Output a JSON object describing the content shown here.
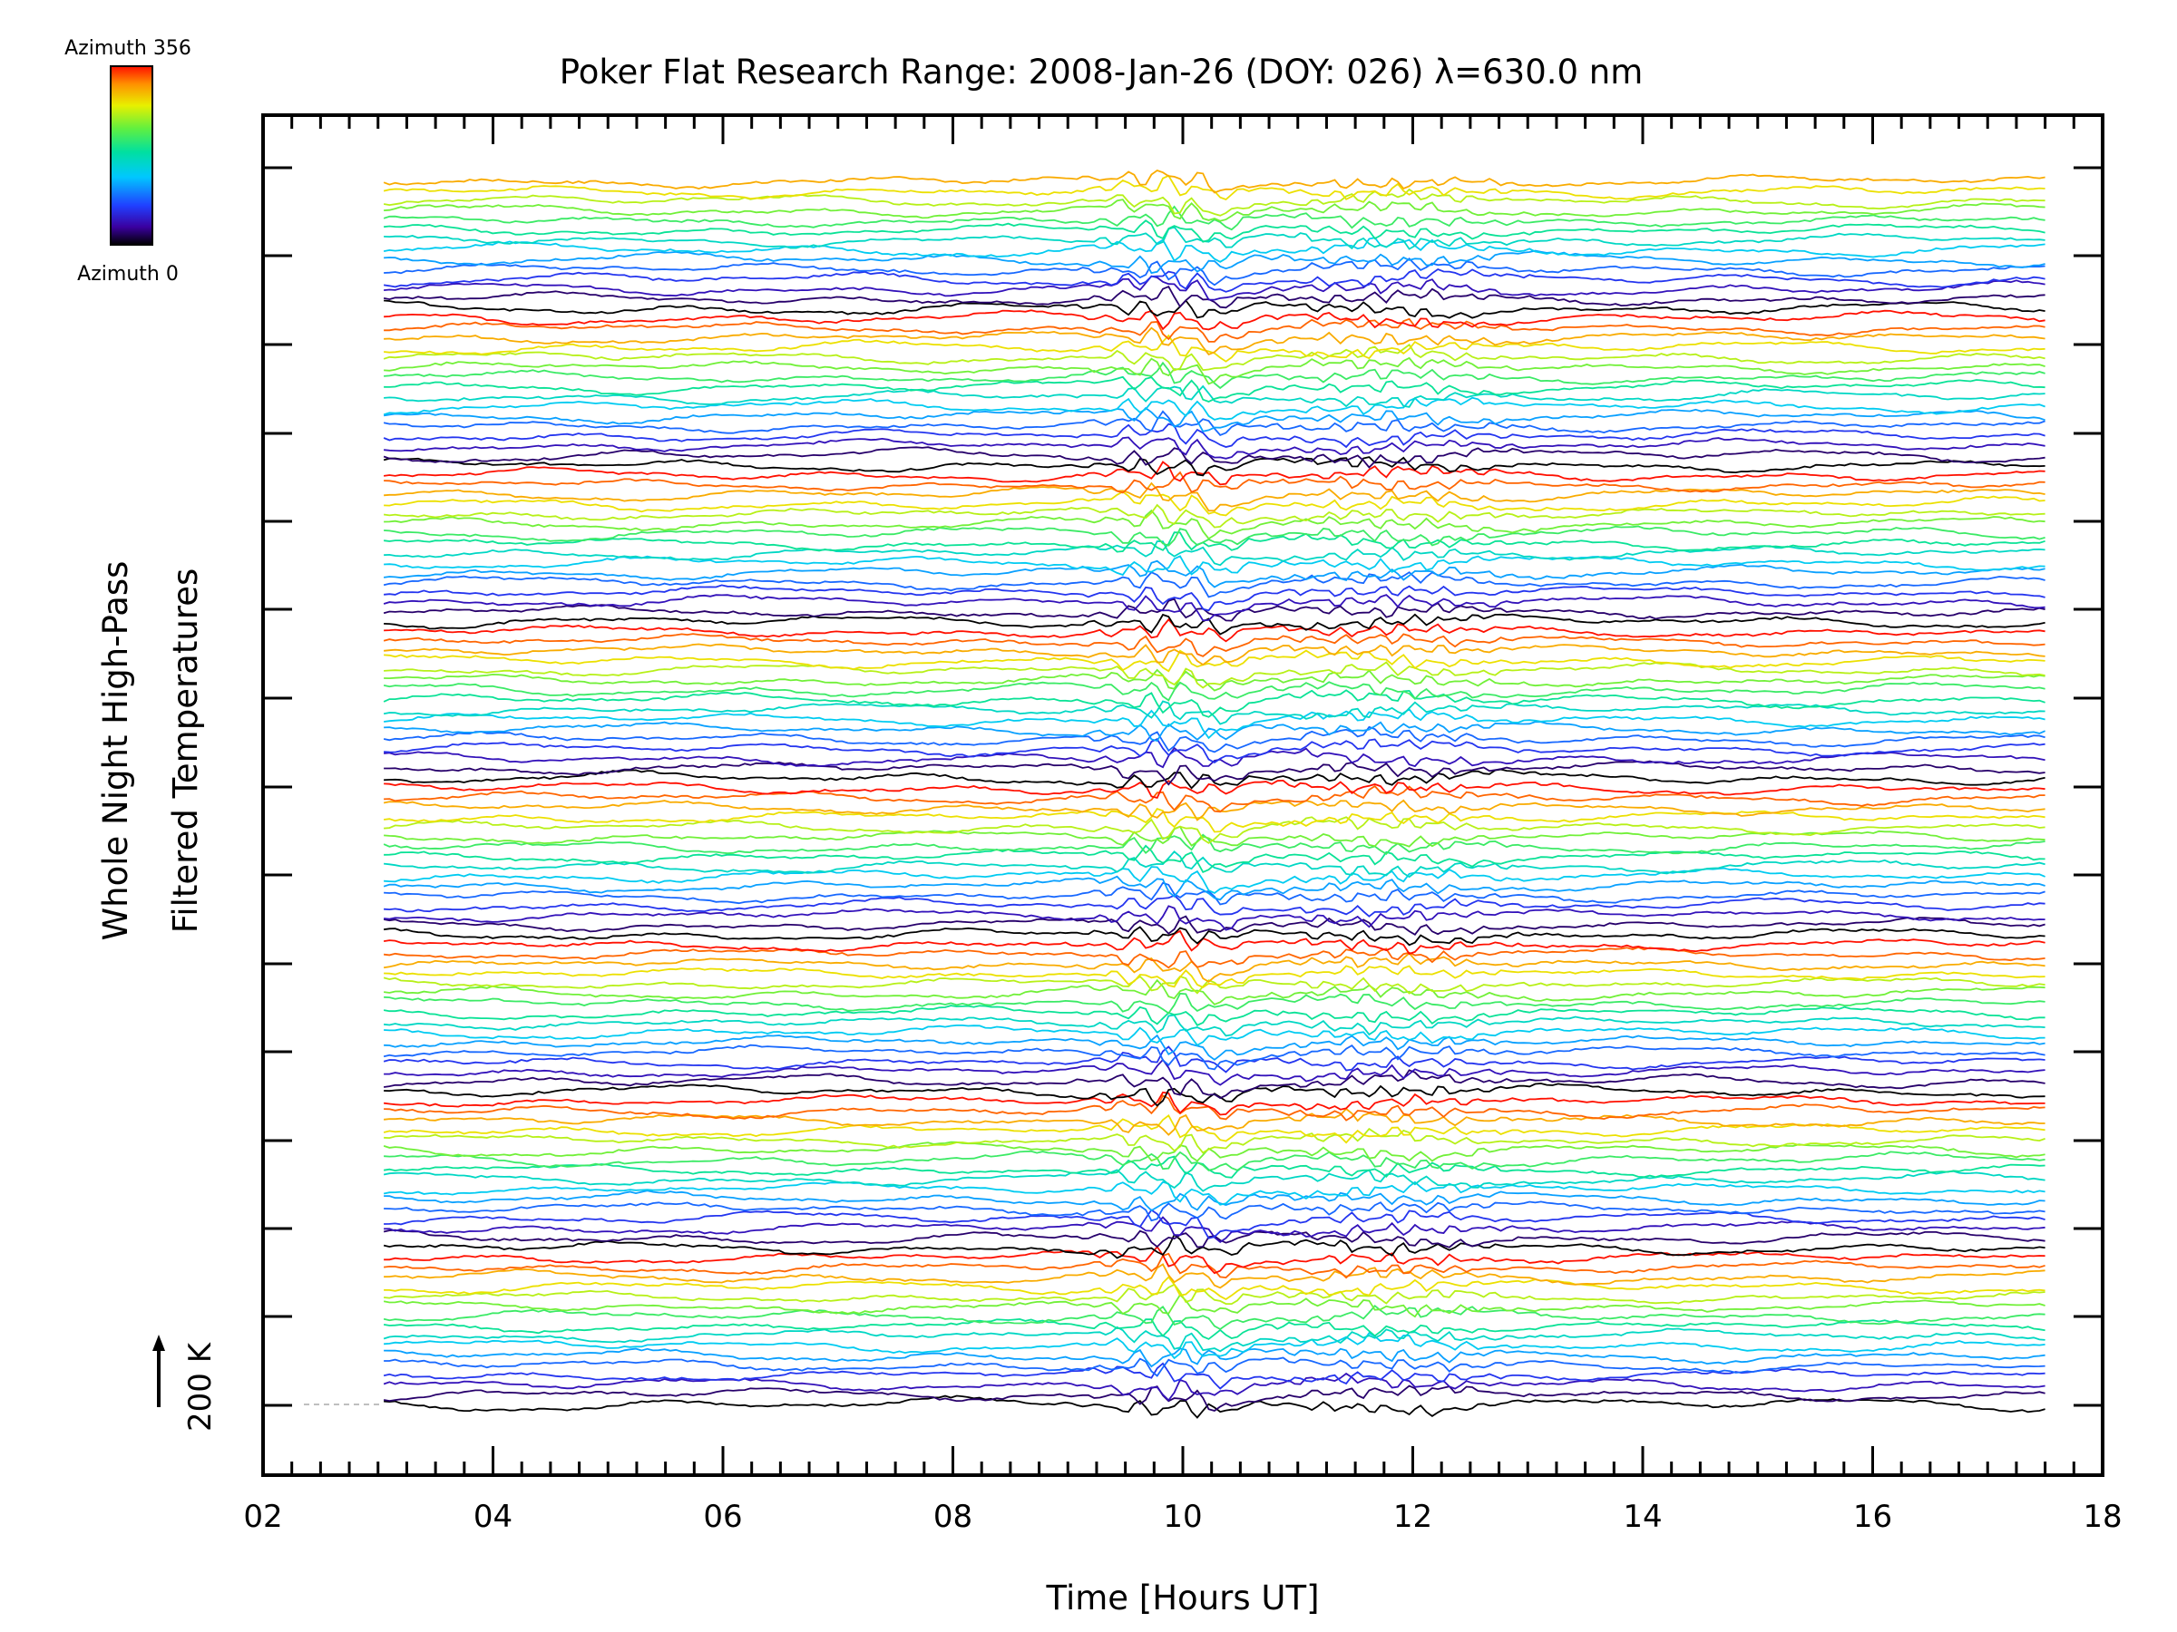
{
  "chart_data": {
    "type": "line",
    "title": "Poker Flat Research Range: 2008-Jan-26 (DOY: 026) λ=630.0 nm",
    "xlabel": "Time [Hours UT]",
    "ylabel_line1": "Whole Night High-Pass",
    "ylabel_line2": "Filtered Temperatures",
    "xlim": [
      2,
      18
    ],
    "x_ticks": [
      "02",
      "04",
      "06",
      "08",
      "10",
      "12",
      "14",
      "16",
      "18"
    ],
    "x_tick_values": [
      2,
      4,
      6,
      8,
      10,
      12,
      14,
      16,
      18
    ],
    "x_range_data": [
      3.05,
      17.5
    ],
    "scale_bar": {
      "label": "200 K",
      "value_k": 200
    },
    "colorbar": {
      "top_label": "Azimuth 356",
      "bottom_label": "Azimuth 0",
      "min": 0,
      "max": 356,
      "colormap": "rainbow"
    },
    "series_count": 126,
    "series_per_ring": 16,
    "series_note": "Stacked traces, each offset vertically, colored by look azimuth; disturbances near 09.5-10.5 UT and 11-12.7 UT",
    "grid": false
  }
}
